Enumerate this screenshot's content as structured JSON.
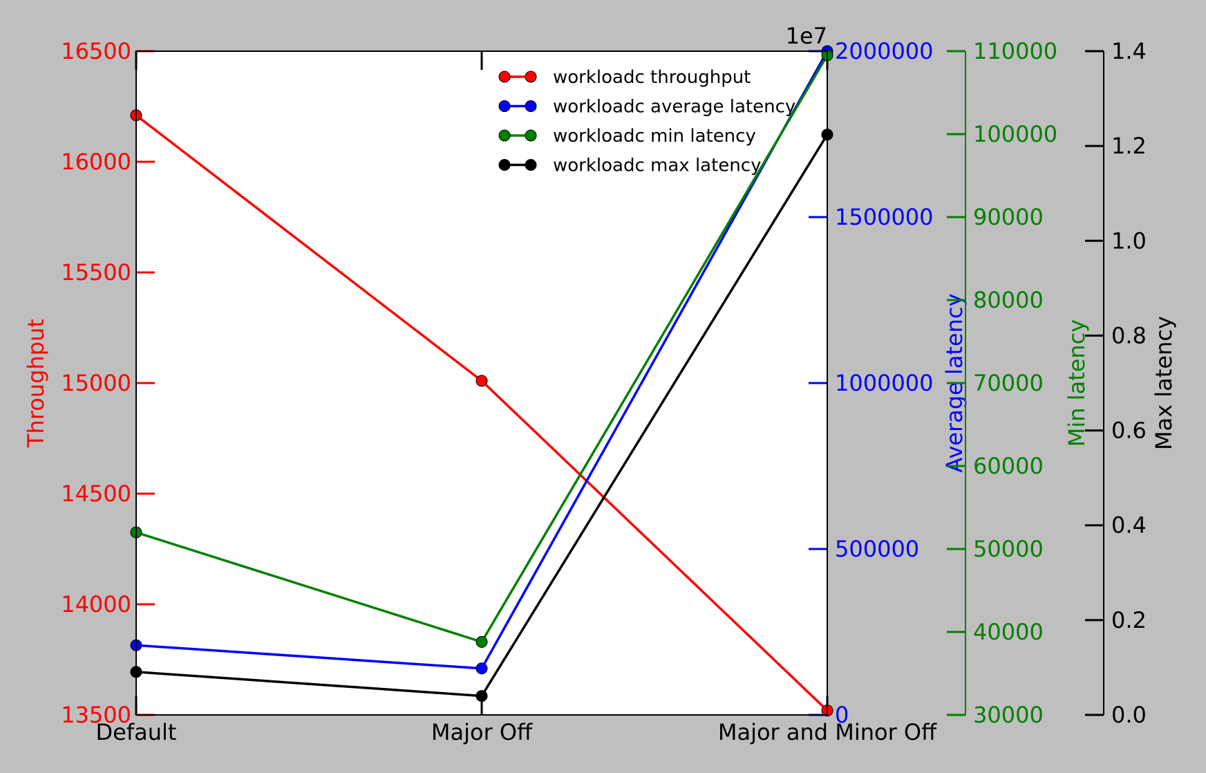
{
  "chart_data": {
    "type": "line",
    "categories": [
      "Default",
      "Major Off",
      "Major and Minor Off"
    ],
    "series": [
      {
        "name": "workloadc throughput",
        "axis": "throughput",
        "color": "#ff0000",
        "values": [
          16210,
          15010,
          13520
        ]
      },
      {
        "name": "workloadc average latency",
        "axis": "avg",
        "color": "#0000ff",
        "values": [
          210000,
          140000,
          2000000
        ]
      },
      {
        "name": "workloadc min latency",
        "axis": "min",
        "color": "#008000",
        "values": [
          52000,
          38800,
          109500
        ]
      },
      {
        "name": "workloadc max latency",
        "axis": "max",
        "color": "#000000",
        "values": [
          0.0907,
          0.04,
          1.224
        ]
      }
    ],
    "axes": {
      "throughput": {
        "label": "Throughput",
        "color": "#ff0000",
        "range": [
          13500,
          16500
        ],
        "ticks": [
          "13500",
          "14000",
          "14500",
          "15000",
          "15500",
          "16000",
          "16500"
        ]
      },
      "avg": {
        "label": "Average latency",
        "color": "#0000ff",
        "range": [
          0,
          2000000
        ],
        "offset_text": "1e7",
        "ticks": [
          "0",
          "500000",
          "1000000",
          "1500000",
          "2000000"
        ]
      },
      "min": {
        "label": "Min latency",
        "color": "#008000",
        "range": [
          30000,
          110000
        ],
        "ticks": [
          "30000",
          "40000",
          "50000",
          "60000",
          "70000",
          "80000",
          "90000",
          "100000",
          "110000"
        ]
      },
      "max": {
        "label": "Max latency",
        "color": "#000000",
        "range": [
          0,
          1.4
        ],
        "ticks": [
          "0.0",
          "0.2",
          "0.4",
          "0.6",
          "0.8",
          "1.0",
          "1.2",
          "1.4"
        ]
      }
    },
    "legend_position": "top-right",
    "grid": false
  }
}
